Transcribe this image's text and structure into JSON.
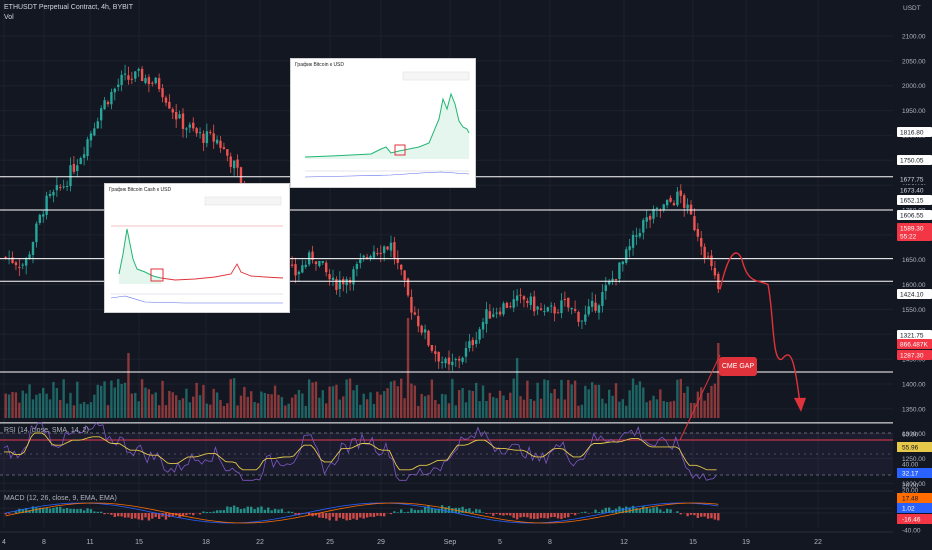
{
  "header": {
    "symbol_line": "ETHUSDT Perpetual Contract, 4h, BYBIT",
    "vol_label": "Vol"
  },
  "axis": {
    "currency": "USDT",
    "price_ticks": [
      "2100.00",
      "2050.00",
      "2000.00",
      "1950.00",
      "1900.00",
      "1850.00",
      "1800.00",
      "1750.00",
      "1700.00",
      "1650.00",
      "1600.00",
      "1550.00",
      "1500.00",
      "1450.00",
      "1400.00",
      "1350.00",
      "1300.00",
      "1250.00",
      "1200.00",
      "1150.00"
    ],
    "rsi_ticks": [
      "60.00",
      "40.00",
      "20.00"
    ],
    "macd_ticks": [
      "20.00",
      "-40.00"
    ],
    "x_ticks": [
      "4",
      "8",
      "11",
      "15",
      "18",
      "22",
      "25",
      "29",
      "Sep",
      "5",
      "8",
      "12",
      "15",
      "19",
      "22"
    ]
  },
  "levels": [
    {
      "label": "1816.80",
      "kind": "white"
    },
    {
      "label": "1750.05",
      "kind": "white"
    },
    {
      "label": "1677.75",
      "kind": "plain"
    },
    {
      "label": "1673.40",
      "kind": "plain"
    },
    {
      "label": "1652.15",
      "kind": "white"
    },
    {
      "label": "1606.55",
      "kind": "white"
    },
    {
      "label": "1589.30",
      "kind": "red"
    },
    {
      "label": "55:22",
      "kind": "red"
    },
    {
      "label": "1424.10",
      "kind": "white"
    },
    {
      "label": "1321.75",
      "kind": "white"
    },
    {
      "label": "866.487K",
      "kind": "red"
    },
    {
      "label": "1287.30",
      "kind": "red"
    }
  ],
  "rsi": {
    "title": "RSI (14, close, SMA, 14, 2)",
    "badge_yellow": "55.96",
    "badge_blue": "32.17"
  },
  "macd": {
    "title": "MACD (12, 26, close, 9, EMA, EMA)",
    "badge_orange": "17.48",
    "badge_blue": "1.02",
    "badge_red": "-16.46"
  },
  "annotation": {
    "cme_gap": "CME GAP"
  },
  "insets": {
    "btc": {
      "title": "График Bitcoin к USD"
    },
    "btc_cash": {
      "title": "График Bitcoin Cash к USD"
    }
  },
  "colors": {
    "up": "#26a69a",
    "down": "#ef5350",
    "background": "#131722",
    "level_red": "#f23645"
  },
  "chart_data": {
    "type": "candlestick",
    "title": "ETHUSDT Perpetual Contract, 4h, BYBIT",
    "ylim": [
      1150,
      2100
    ],
    "close_path": [
      {
        "x": "4",
        "y": 1655
      },
      {
        "x": "6",
        "y": 1640
      },
      {
        "x": "8",
        "y": 1760
      },
      {
        "x": "9",
        "y": 1800
      },
      {
        "x": "10",
        "y": 1870
      },
      {
        "x": "11",
        "y": 1960
      },
      {
        "x": "12",
        "y": 2010
      },
      {
        "x": "13",
        "y": 2020
      },
      {
        "x": "14",
        "y": 2000
      },
      {
        "x": "15",
        "y": 1930
      },
      {
        "x": "16",
        "y": 1900
      },
      {
        "x": "17",
        "y": 1890
      },
      {
        "x": "18",
        "y": 1830
      },
      {
        "x": "19",
        "y": 1690
      },
      {
        "x": "20",
        "y": 1650
      },
      {
        "x": "21",
        "y": 1620
      },
      {
        "x": "22",
        "y": 1660
      },
      {
        "x": "23",
        "y": 1600
      },
      {
        "x": "24",
        "y": 1620
      },
      {
        "x": "25",
        "y": 1670
      },
      {
        "x": "26",
        "y": 1680
      },
      {
        "x": "27",
        "y": 1560
      },
      {
        "x": "28",
        "y": 1480
      },
      {
        "x": "29",
        "y": 1430
      },
      {
        "x": "30",
        "y": 1470
      },
      {
        "x": "31",
        "y": 1540
      },
      {
        "x": "Sep",
        "y": 1560
      },
      {
        "x": "2",
        "y": 1570
      },
      {
        "x": "3",
        "y": 1540
      },
      {
        "x": "5",
        "y": 1560
      },
      {
        "x": "6",
        "y": 1530
      },
      {
        "x": "7",
        "y": 1580
      },
      {
        "x": "8",
        "y": 1640
      },
      {
        "x": "9",
        "y": 1720
      },
      {
        "x": "10",
        "y": 1750
      },
      {
        "x": "11",
        "y": 1780
      },
      {
        "x": "12",
        "y": 1700
      },
      {
        "x": "13",
        "y": 1590
      }
    ],
    "projection": [
      {
        "x": "13",
        "y": 1590
      },
      {
        "x": "14",
        "y": 1650
      },
      {
        "x": "15",
        "y": 1600
      },
      {
        "x": "16",
        "y": 1440
      },
      {
        "x": "17",
        "y": 1350
      }
    ]
  }
}
